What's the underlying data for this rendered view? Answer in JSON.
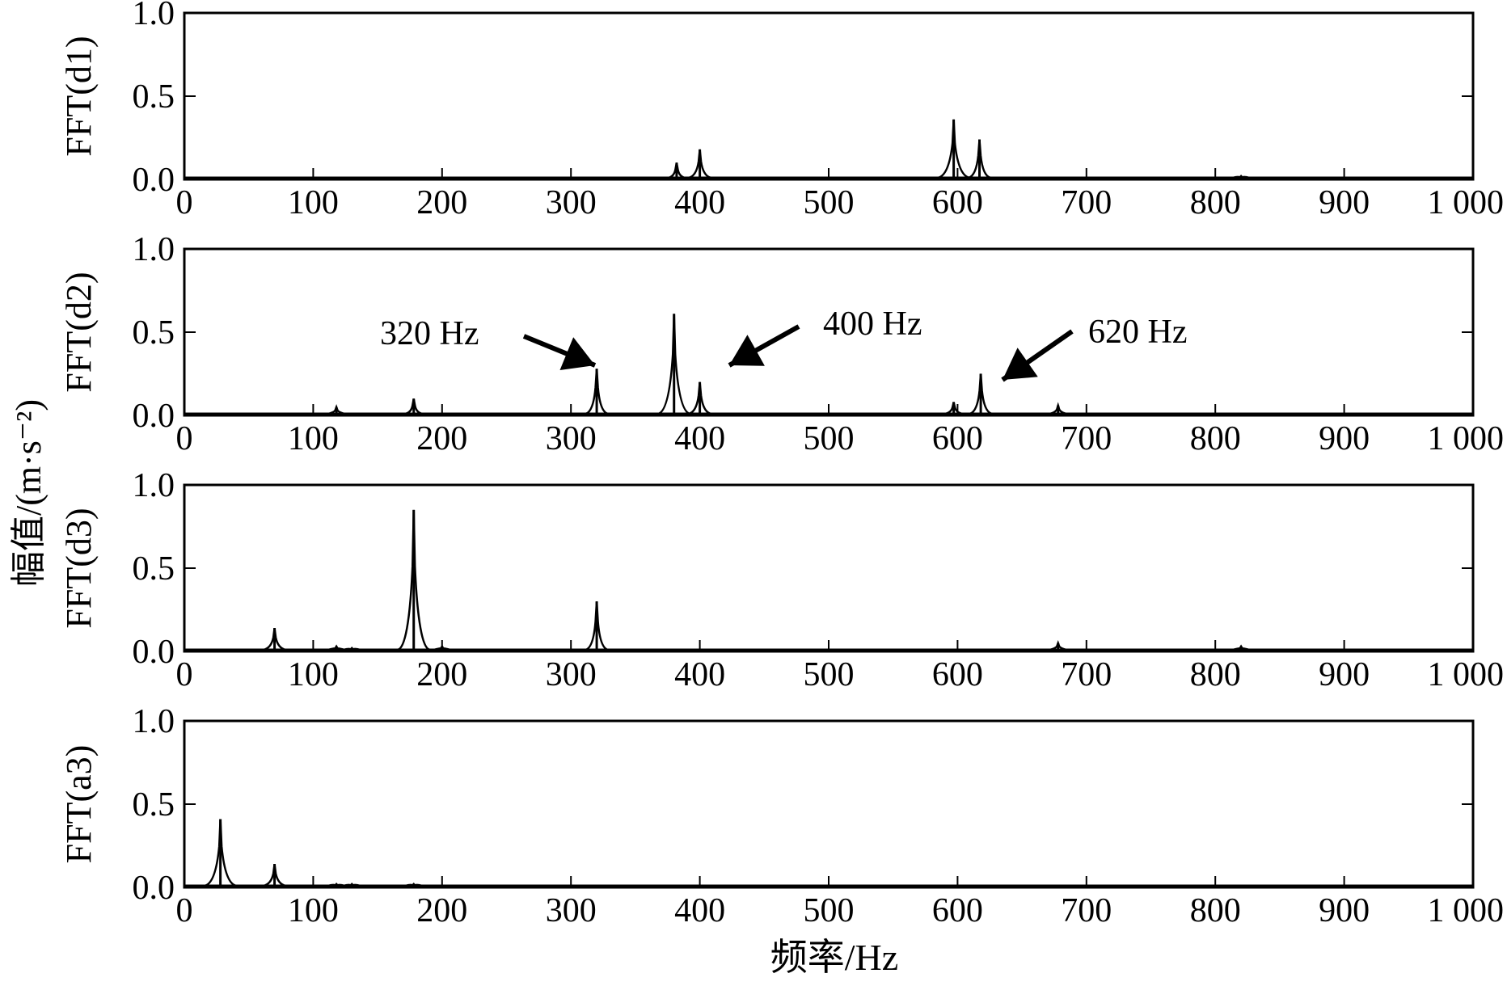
{
  "y_axis_title": "幅值/(m·s⁻²)",
  "x_axis_title": "频率/Hz",
  "chart_data": [
    {
      "type": "line",
      "ylabel": "FFT(d1)",
      "xlim": [
        0,
        1000
      ],
      "ylim": [
        0,
        1.0
      ],
      "xticks": [
        "0",
        "100",
        "200",
        "300",
        "400",
        "500",
        "600",
        "700",
        "800",
        "900",
        "1 000"
      ],
      "yticks": [
        "0.0",
        "0.5",
        "1.0"
      ],
      "peaks": [
        {
          "x": 382,
          "y": 0.1
        },
        {
          "x": 400,
          "y": 0.18
        },
        {
          "x": 597,
          "y": 0.36
        },
        {
          "x": 617,
          "y": 0.24
        },
        {
          "x": 820,
          "y": 0.02
        }
      ],
      "annotations": []
    },
    {
      "type": "line",
      "ylabel": "FFT(d2)",
      "xlim": [
        0,
        1000
      ],
      "ylim": [
        0,
        1.0
      ],
      "xticks": [
        "0",
        "100",
        "200",
        "300",
        "400",
        "500",
        "600",
        "700",
        "800",
        "900",
        "1 000"
      ],
      "yticks": [
        "0.0",
        "0.5",
        "1.0"
      ],
      "peaks": [
        {
          "x": 118,
          "y": 0.05
        },
        {
          "x": 178,
          "y": 0.1
        },
        {
          "x": 320,
          "y": 0.28
        },
        {
          "x": 380,
          "y": 0.61
        },
        {
          "x": 400,
          "y": 0.2
        },
        {
          "x": 597,
          "y": 0.08
        },
        {
          "x": 618,
          "y": 0.25
        },
        {
          "x": 678,
          "y": 0.06
        }
      ],
      "annotations": [
        {
          "text": "320 Hz",
          "x": 320,
          "y": 0.28
        },
        {
          "text": "400 Hz",
          "x": 400,
          "y": 0.28
        },
        {
          "text": "620 Hz",
          "x": 620,
          "y": 0.22
        }
      ]
    },
    {
      "type": "line",
      "ylabel": "FFT(d3)",
      "xlim": [
        0,
        1000
      ],
      "ylim": [
        0,
        1.0
      ],
      "xticks": [
        "0",
        "100",
        "200",
        "300",
        "400",
        "500",
        "600",
        "700",
        "800",
        "900",
        "1 000"
      ],
      "yticks": [
        "0.0",
        "0.5",
        "1.0"
      ],
      "peaks": [
        {
          "x": 70,
          "y": 0.14
        },
        {
          "x": 118,
          "y": 0.03
        },
        {
          "x": 130,
          "y": 0.02
        },
        {
          "x": 178,
          "y": 0.85
        },
        {
          "x": 200,
          "y": 0.03
        },
        {
          "x": 320,
          "y": 0.3
        },
        {
          "x": 678,
          "y": 0.05
        },
        {
          "x": 820,
          "y": 0.03
        }
      ],
      "annotations": []
    },
    {
      "type": "line",
      "ylabel": "FFT(a3)",
      "xlim": [
        0,
        1000
      ],
      "ylim": [
        0,
        1.0
      ],
      "xticks": [
        "0",
        "100",
        "200",
        "300",
        "400",
        "500",
        "600",
        "700",
        "800",
        "900",
        "1 000"
      ],
      "yticks": [
        "0.0",
        "0.5",
        "1.0"
      ],
      "peaks": [
        {
          "x": 28,
          "y": 0.41
        },
        {
          "x": 70,
          "y": 0.14
        },
        {
          "x": 118,
          "y": 0.02
        },
        {
          "x": 130,
          "y": 0.02
        },
        {
          "x": 178,
          "y": 0.02
        }
      ],
      "annotations": []
    }
  ]
}
